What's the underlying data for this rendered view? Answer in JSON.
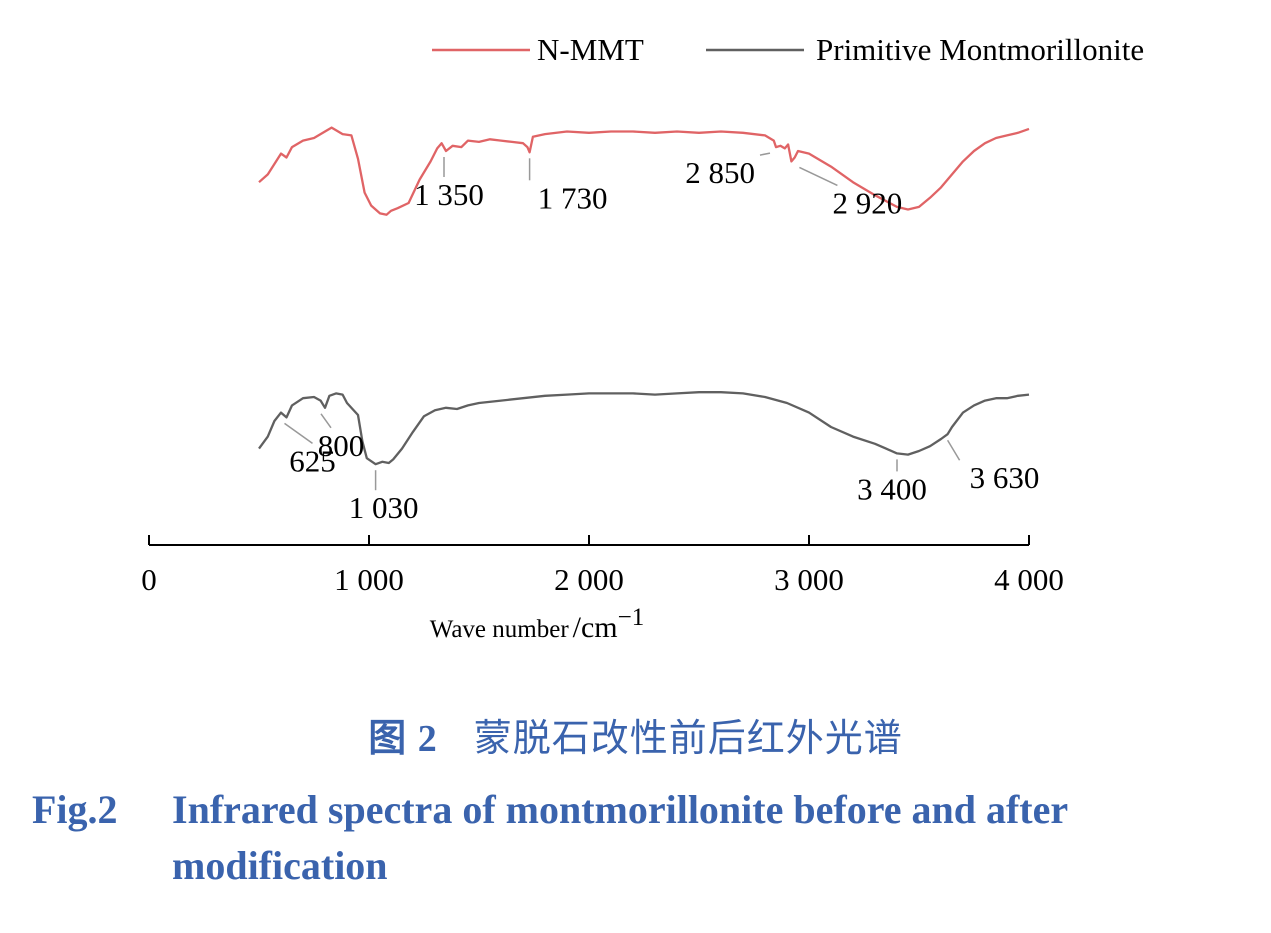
{
  "chart_data": {
    "type": "line",
    "xlabel": "Wave number",
    "xunit": "/cm",
    "xunit_exp": "−1",
    "xlim": [
      0,
      4000
    ],
    "x_ticks": [
      0,
      1000,
      2000,
      3000,
      4000
    ],
    "x_tick_labels": [
      "0",
      "1 000",
      "2 000",
      "3 000",
      "4 000"
    ],
    "legend": {
      "placement": "top-right"
    },
    "series": [
      {
        "name": "N-MMT",
        "color": "#e06466",
        "points": [
          [
            500,
            0.56
          ],
          [
            540,
            0.62
          ],
          [
            600,
            0.78
          ],
          [
            625,
            0.75
          ],
          [
            650,
            0.83
          ],
          [
            700,
            0.88
          ],
          [
            750,
            0.9
          ],
          [
            800,
            0.95
          ],
          [
            830,
            0.98
          ],
          [
            880,
            0.93
          ],
          [
            920,
            0.92
          ],
          [
            950,
            0.74
          ],
          [
            980,
            0.48
          ],
          [
            1010,
            0.38
          ],
          [
            1050,
            0.32
          ],
          [
            1080,
            0.31
          ],
          [
            1100,
            0.34
          ],
          [
            1130,
            0.36
          ],
          [
            1180,
            0.4
          ],
          [
            1230,
            0.58
          ],
          [
            1280,
            0.72
          ],
          [
            1310,
            0.82
          ],
          [
            1330,
            0.86
          ],
          [
            1350,
            0.8
          ],
          [
            1380,
            0.84
          ],
          [
            1420,
            0.83
          ],
          [
            1450,
            0.88
          ],
          [
            1500,
            0.87
          ],
          [
            1550,
            0.89
          ],
          [
            1600,
            0.88
          ],
          [
            1650,
            0.87
          ],
          [
            1700,
            0.86
          ],
          [
            1720,
            0.83
          ],
          [
            1730,
            0.79
          ],
          [
            1745,
            0.91
          ],
          [
            1800,
            0.93
          ],
          [
            1900,
            0.95
          ],
          [
            2000,
            0.94
          ],
          [
            2100,
            0.95
          ],
          [
            2200,
            0.95
          ],
          [
            2300,
            0.94
          ],
          [
            2400,
            0.95
          ],
          [
            2500,
            0.94
          ],
          [
            2600,
            0.95
          ],
          [
            2700,
            0.94
          ],
          [
            2800,
            0.92
          ],
          [
            2840,
            0.88
          ],
          [
            2850,
            0.83
          ],
          [
            2870,
            0.84
          ],
          [
            2890,
            0.82
          ],
          [
            2905,
            0.85
          ],
          [
            2920,
            0.72
          ],
          [
            2935,
            0.75
          ],
          [
            2950,
            0.8
          ],
          [
            3000,
            0.78
          ],
          [
            3100,
            0.68
          ],
          [
            3200,
            0.56
          ],
          [
            3300,
            0.46
          ],
          [
            3400,
            0.37
          ],
          [
            3450,
            0.35
          ],
          [
            3500,
            0.37
          ],
          [
            3550,
            0.44
          ],
          [
            3600,
            0.52
          ],
          [
            3650,
            0.62
          ],
          [
            3700,
            0.72
          ],
          [
            3750,
            0.8
          ],
          [
            3800,
            0.86
          ],
          [
            3850,
            0.9
          ],
          [
            3900,
            0.92
          ],
          [
            3950,
            0.94
          ],
          [
            4000,
            0.97
          ]
        ]
      },
      {
        "name": "Primitive Montmorillonite",
        "color": "#606060",
        "points": [
          [
            500,
            0.22
          ],
          [
            540,
            0.32
          ],
          [
            570,
            0.45
          ],
          [
            600,
            0.52
          ],
          [
            625,
            0.48
          ],
          [
            650,
            0.58
          ],
          [
            700,
            0.64
          ],
          [
            750,
            0.65
          ],
          [
            780,
            0.62
          ],
          [
            800,
            0.56
          ],
          [
            820,
            0.66
          ],
          [
            850,
            0.68
          ],
          [
            880,
            0.67
          ],
          [
            900,
            0.6
          ],
          [
            950,
            0.5
          ],
          [
            970,
            0.28
          ],
          [
            990,
            0.14
          ],
          [
            1030,
            0.09
          ],
          [
            1060,
            0.11
          ],
          [
            1090,
            0.1
          ],
          [
            1110,
            0.13
          ],
          [
            1150,
            0.22
          ],
          [
            1200,
            0.36
          ],
          [
            1250,
            0.49
          ],
          [
            1300,
            0.54
          ],
          [
            1350,
            0.56
          ],
          [
            1400,
            0.55
          ],
          [
            1450,
            0.58
          ],
          [
            1500,
            0.6
          ],
          [
            1600,
            0.62
          ],
          [
            1700,
            0.64
          ],
          [
            1800,
            0.66
          ],
          [
            1900,
            0.67
          ],
          [
            2000,
            0.68
          ],
          [
            2100,
            0.68
          ],
          [
            2200,
            0.68
          ],
          [
            2300,
            0.67
          ],
          [
            2400,
            0.68
          ],
          [
            2500,
            0.69
          ],
          [
            2600,
            0.69
          ],
          [
            2700,
            0.68
          ],
          [
            2800,
            0.65
          ],
          [
            2900,
            0.6
          ],
          [
            3000,
            0.52
          ],
          [
            3100,
            0.4
          ],
          [
            3200,
            0.32
          ],
          [
            3300,
            0.26
          ],
          [
            3350,
            0.22
          ],
          [
            3400,
            0.18
          ],
          [
            3450,
            0.17
          ],
          [
            3500,
            0.2
          ],
          [
            3550,
            0.24
          ],
          [
            3600,
            0.3
          ],
          [
            3630,
            0.34
          ],
          [
            3650,
            0.4
          ],
          [
            3700,
            0.52
          ],
          [
            3750,
            0.58
          ],
          [
            3800,
            0.62
          ],
          [
            3850,
            0.64
          ],
          [
            3900,
            0.64
          ],
          [
            3950,
            0.66
          ],
          [
            4000,
            0.67
          ]
        ]
      }
    ],
    "peak_labels": [
      {
        "series": 0,
        "text": "1 350",
        "x": 1350
      },
      {
        "series": 0,
        "text": "1 730",
        "x": 1730
      },
      {
        "series": 0,
        "text": "2 850",
        "x": 2850
      },
      {
        "series": 0,
        "text": "2 920",
        "x": 2920
      },
      {
        "series": 1,
        "text": "625",
        "x": 625
      },
      {
        "series": 1,
        "text": "800",
        "x": 800
      },
      {
        "series": 1,
        "text": "1 030",
        "x": 1030
      },
      {
        "series": 1,
        "text": "3 400",
        "x": 3400
      },
      {
        "series": 1,
        "text": "3 630",
        "x": 3630
      }
    ]
  },
  "caption": {
    "cn_number": "图 2",
    "cn_title": "蒙脱石改性前后红外光谱",
    "en_number": "Fig.2",
    "en_title_line1": "Infrared spectra of montmorillonite before and after",
    "en_title_line2": "modification"
  }
}
